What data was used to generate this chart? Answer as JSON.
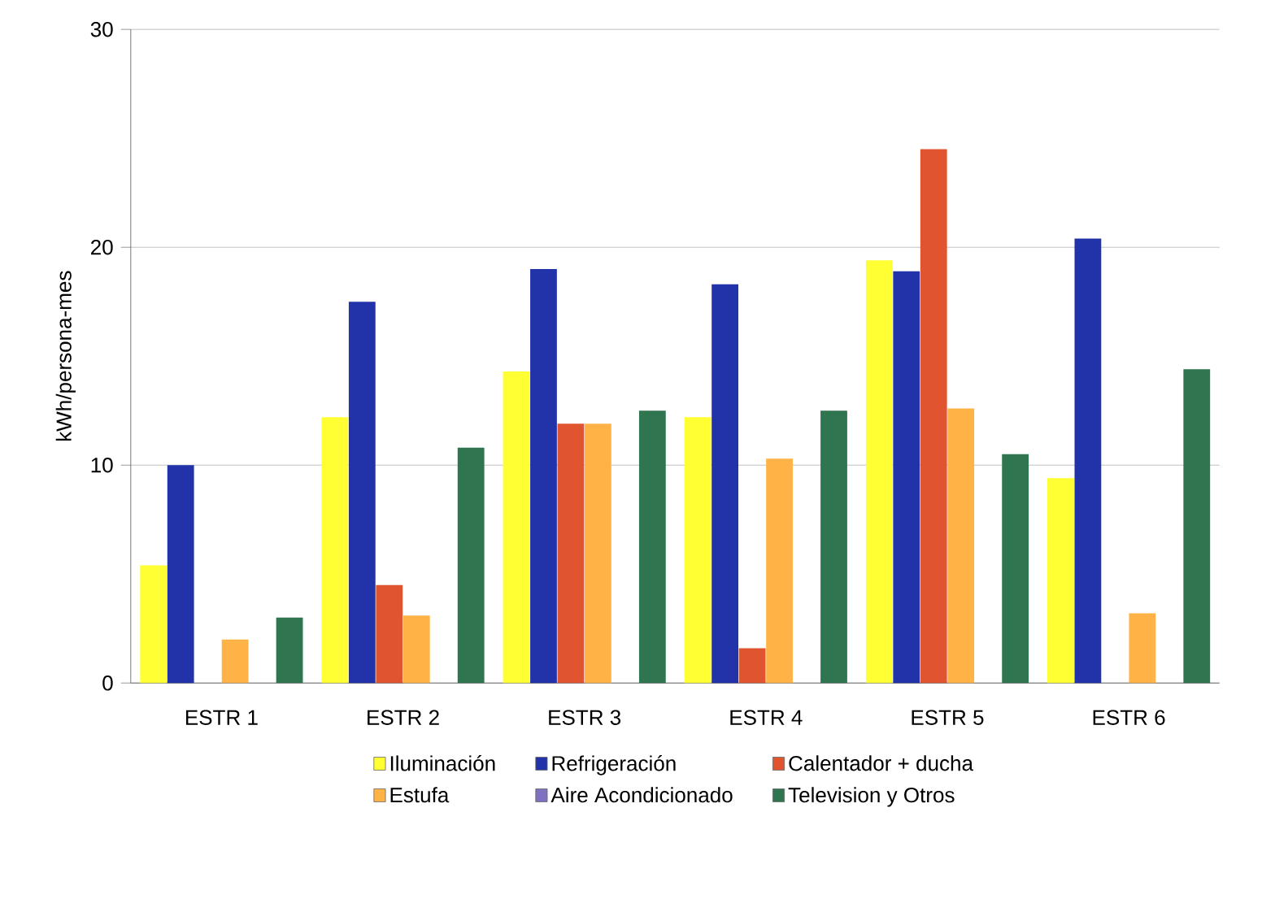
{
  "chart_data": {
    "type": "bar",
    "ylabel": "kWh/persona-mes",
    "categories": [
      "ESTR 1",
      "ESTR 2",
      "ESTR 3",
      "ESTR 4",
      "ESTR 5",
      "ESTR 6"
    ],
    "series": [
      {
        "name": "Iluminación",
        "color": "#ffff33",
        "values": [
          5.4,
          12.2,
          14.3,
          12.2,
          19.4,
          9.4
        ]
      },
      {
        "name": "Refrigeración",
        "color": "#2233aa",
        "values": [
          10,
          17.5,
          19.0,
          18.3,
          18.9,
          20.4
        ]
      },
      {
        "name": "Calentador + ducha",
        "color": "#e05530",
        "values": [
          null,
          4.5,
          11.9,
          1.6,
          24.5,
          null
        ]
      },
      {
        "name": "Estufa",
        "color": "#ffb347",
        "values": [
          2.0,
          3.1,
          11.9,
          10.3,
          12.6,
          3.2
        ]
      },
      {
        "name": "Aire Acondicionado",
        "color": "#8070c0",
        "values": [
          null,
          null,
          null,
          null,
          null,
          null
        ]
      },
      {
        "name": "Television y Otros",
        "color": "#2e7550",
        "values": [
          3.0,
          10.8,
          12.5,
          12.5,
          10.5,
          14.4
        ]
      }
    ],
    "ylim": [
      0,
      30
    ],
    "yticks": [
      0,
      10,
      20,
      30
    ],
    "grid": "y",
    "legend": "bottom"
  }
}
